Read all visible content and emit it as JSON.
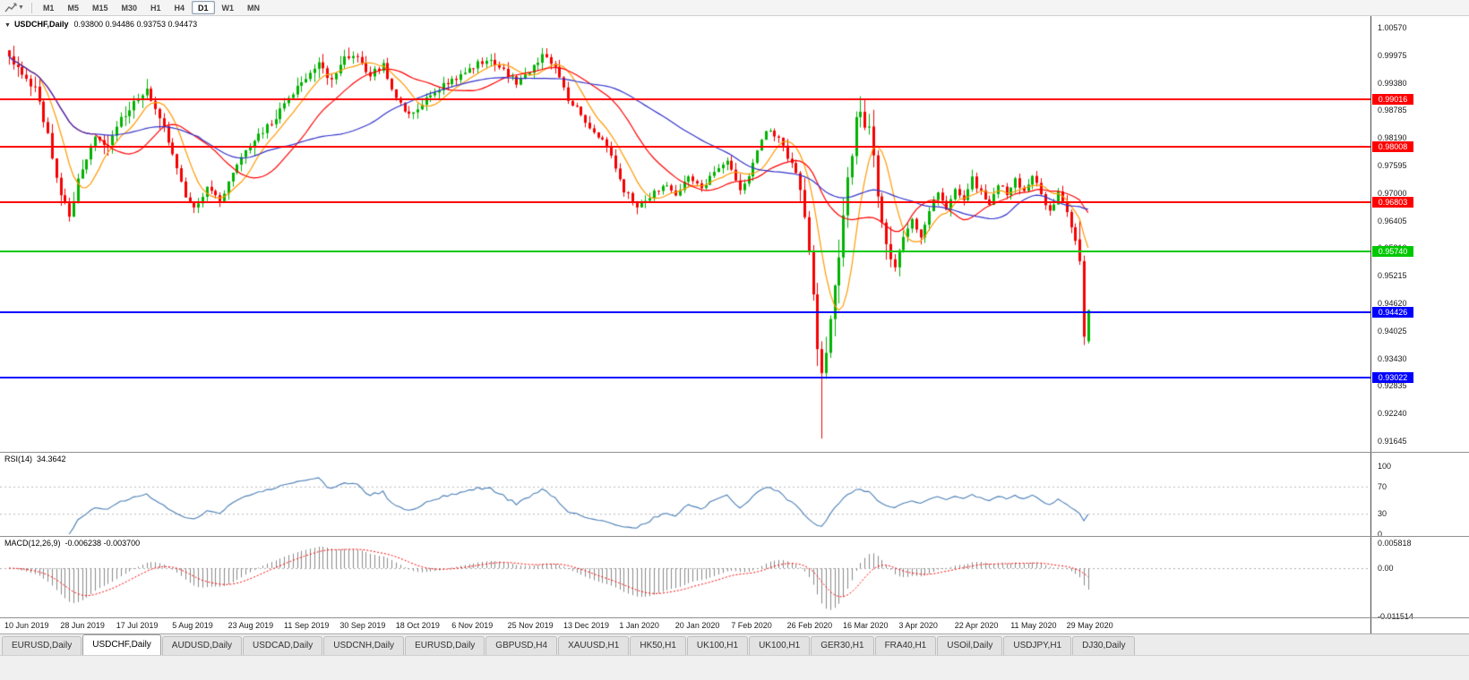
{
  "toolbar": {
    "timeframes": [
      "M1",
      "M5",
      "M15",
      "M30",
      "H1",
      "H4",
      "D1",
      "W1",
      "MN"
    ],
    "active_timeframe": "D1"
  },
  "chart_data": [
    {
      "type": "candlestick",
      "title": "USDCHF,Daily",
      "collapse_icon": "▼",
      "ohlc_text": "0.93800 0.94486 0.93753 0.94473",
      "current_bar": {
        "open": 0.938,
        "high": 0.94486,
        "low": 0.93753,
        "close": 0.94473
      },
      "bar_count": 252,
      "bars_per_x_label": 13,
      "x_labels": [
        "10 Jun 2019",
        "28 Jun 2019",
        "17 Jul 2019",
        "5 Aug 2019",
        "23 Aug 2019",
        "11 Sep 2019",
        "30 Sep 2019",
        "18 Oct 2019",
        "6 Nov 2019",
        "25 Nov 2019",
        "13 Dec 2019",
        "1 Jan 2020",
        "20 Jan 2020",
        "7 Feb 2020",
        "26 Feb 2020",
        "16 Mar 2020",
        "3 Apr 2020",
        "22 Apr 2020",
        "11 May 2020",
        "29 May 2020"
      ],
      "y_axis_ticks": [
        "1.00570",
        "0.99975",
        "0.99380",
        "0.98785",
        "0.98190",
        "0.97595",
        "0.97000",
        "0.96405",
        "0.95810",
        "0.95215",
        "0.94620",
        "0.94025",
        "0.93430",
        "0.92835",
        "0.92240",
        "0.91645"
      ],
      "y_axis_top_tick": 1.0057,
      "y_axis_tick_step": 0.00595,
      "close_anchors": [
        [
          0,
          0.999
        ],
        [
          3,
          0.996
        ],
        [
          6,
          0.9925
        ],
        [
          9,
          0.982
        ],
        [
          12,
          0.97
        ],
        [
          14,
          0.9655
        ],
        [
          17,
          0.9755
        ],
        [
          20,
          0.983
        ],
        [
          23,
          0.9795
        ],
        [
          26,
          0.9855
        ],
        [
          29,
          0.99
        ],
        [
          32,
          0.9925
        ],
        [
          35,
          0.987
        ],
        [
          38,
          0.978
        ],
        [
          41,
          0.969
        ],
        [
          43,
          0.9665
        ],
        [
          46,
          0.9715
        ],
        [
          49,
          0.9685
        ],
        [
          52,
          0.9745
        ],
        [
          56,
          0.98
        ],
        [
          60,
          0.9845
        ],
        [
          64,
          0.989
        ],
        [
          68,
          0.9935
        ],
        [
          72,
          0.9975
        ],
        [
          75,
          0.9945
        ],
        [
          78,
          1.0
        ],
        [
          81,
          0.9985
        ],
        [
          84,
          0.9955
        ],
        [
          87,
          0.9975
        ],
        [
          90,
          0.9905
        ],
        [
          93,
          0.9865
        ],
        [
          96,
          0.9895
        ],
        [
          100,
          0.9925
        ],
        [
          104,
          0.995
        ],
        [
          108,
          0.9975
        ],
        [
          112,
          0.999
        ],
        [
          115,
          0.9965
        ],
        [
          118,
          0.994
        ],
        [
          121,
          0.9965
        ],
        [
          124,
          0.9995
        ],
        [
          127,
          0.9975
        ],
        [
          130,
          0.9905
        ],
        [
          133,
          0.987
        ],
        [
          136,
          0.983
        ],
        [
          139,
          0.98
        ],
        [
          143,
          0.9705
        ],
        [
          146,
          0.9675
        ],
        [
          149,
          0.969
        ],
        [
          152,
          0.972
        ],
        [
          155,
          0.97
        ],
        [
          158,
          0.973
        ],
        [
          161,
          0.971
        ],
        [
          164,
          0.9745
        ],
        [
          167,
          0.977
        ],
        [
          170,
          0.97
        ],
        [
          173,
          0.976
        ],
        [
          176,
          0.984
        ],
        [
          179,
          0.982
        ],
        [
          181,
          0.978
        ],
        [
          183,
          0.974
        ],
        [
          185,
          0.965
        ],
        [
          187,
          0.948
        ],
        [
          188,
          0.936
        ],
        [
          189,
          0.93
        ],
        [
          191,
          0.942
        ],
        [
          193,
          0.956
        ],
        [
          195,
          0.972
        ],
        [
          197,
          0.985
        ],
        [
          198,
          0.988
        ],
        [
          200,
          0.983
        ],
        [
          202,
          0.97
        ],
        [
          204,
          0.96
        ],
        [
          206,
          0.953
        ],
        [
          208,
          0.96
        ],
        [
          210,
          0.964
        ],
        [
          212,
          0.96
        ],
        [
          214,
          0.966
        ],
        [
          216,
          0.97
        ],
        [
          218,
          0.967
        ],
        [
          220,
          0.971
        ],
        [
          222,
          0.969
        ],
        [
          224,
          0.973
        ],
        [
          226,
          0.97
        ],
        [
          228,
          0.967
        ],
        [
          230,
          0.972
        ],
        [
          232,
          0.97
        ],
        [
          234,
          0.973
        ],
        [
          236,
          0.97
        ],
        [
          238,
          0.974
        ],
        [
          240,
          0.97
        ],
        [
          242,
          0.966
        ],
        [
          244,
          0.97
        ],
        [
          246,
          0.966
        ],
        [
          248,
          0.96
        ],
        [
          249,
          0.9553
        ],
        [
          250,
          0.939
        ],
        [
          251,
          0.9447
        ]
      ],
      "pinned_low": {
        "bar": 189,
        "price": 0.917
      },
      "final_bars": [
        {
          "open": 0.96,
          "high": 0.9642,
          "low": 0.9545,
          "close": 0.9553
        },
        {
          "open": 0.9553,
          "high": 0.9565,
          "low": 0.9372,
          "close": 0.939
        },
        {
          "open": 0.938,
          "high": 0.94486,
          "low": 0.93753,
          "close": 0.94473
        }
      ],
      "horizontal_lines": [
        {
          "value": 0.99016,
          "label": "0.99016",
          "color": "#ff0000"
        },
        {
          "value": 0.98008,
          "label": "0.98008",
          "color": "#ff0000"
        },
        {
          "value": 0.96803,
          "label": "0.96803",
          "color": "#ff0000"
        },
        {
          "value": 0.9574,
          "label": "0.95740",
          "color": "#00c800"
        },
        {
          "value": 0.94426,
          "label": "0.94426",
          "color": "#0000ff"
        },
        {
          "value": 0.93022,
          "label": "0.93022",
          "color": "#0000ff"
        }
      ],
      "moving_averages": [
        {
          "period": 8,
          "color": "#ff9900"
        },
        {
          "period": 21,
          "color": "#ff0000"
        },
        {
          "period": 45,
          "color": "#3333cc"
        }
      ],
      "up_color": "#00b200",
      "down_color": "#f40000"
    },
    {
      "type": "line",
      "label": "RSI(14)",
      "value": "34.3642",
      "period": 14,
      "levels": [
        100,
        70,
        30,
        0
      ],
      "level_labels": [
        "100",
        "70",
        "30",
        "0"
      ],
      "dotted_levels": [
        70,
        30
      ],
      "color": "#4a7eb5"
    },
    {
      "type": "bar",
      "label": "MACD(12,26,9)",
      "value": "-0.006238 -0.003700",
      "fast": 12,
      "slow": 26,
      "signal": 9,
      "y_ticks": [
        "0.005818",
        "0.00",
        "-0.011514"
      ],
      "y_tick_values": [
        0.005818,
        0,
        -0.011514
      ],
      "histogram_color": "#8a8a8a",
      "signal_color": "#ff0000"
    }
  ],
  "tab_bar": {
    "active_index": 1,
    "tabs": [
      "EURUSD,Daily",
      "USDCHF,Daily",
      "AUDUSD,Daily",
      "USDCAD,Daily",
      "USDCNH,Daily",
      "EURUSD,Daily",
      "GBPUSD,H4",
      "XAUUSD,H1",
      "HK50,H1",
      "UK100,H1",
      "UK100,H1",
      "GER30,H1",
      "FRA40,H1",
      "USOil,Daily",
      "USDJPY,H1",
      "DJ30,Daily"
    ]
  }
}
